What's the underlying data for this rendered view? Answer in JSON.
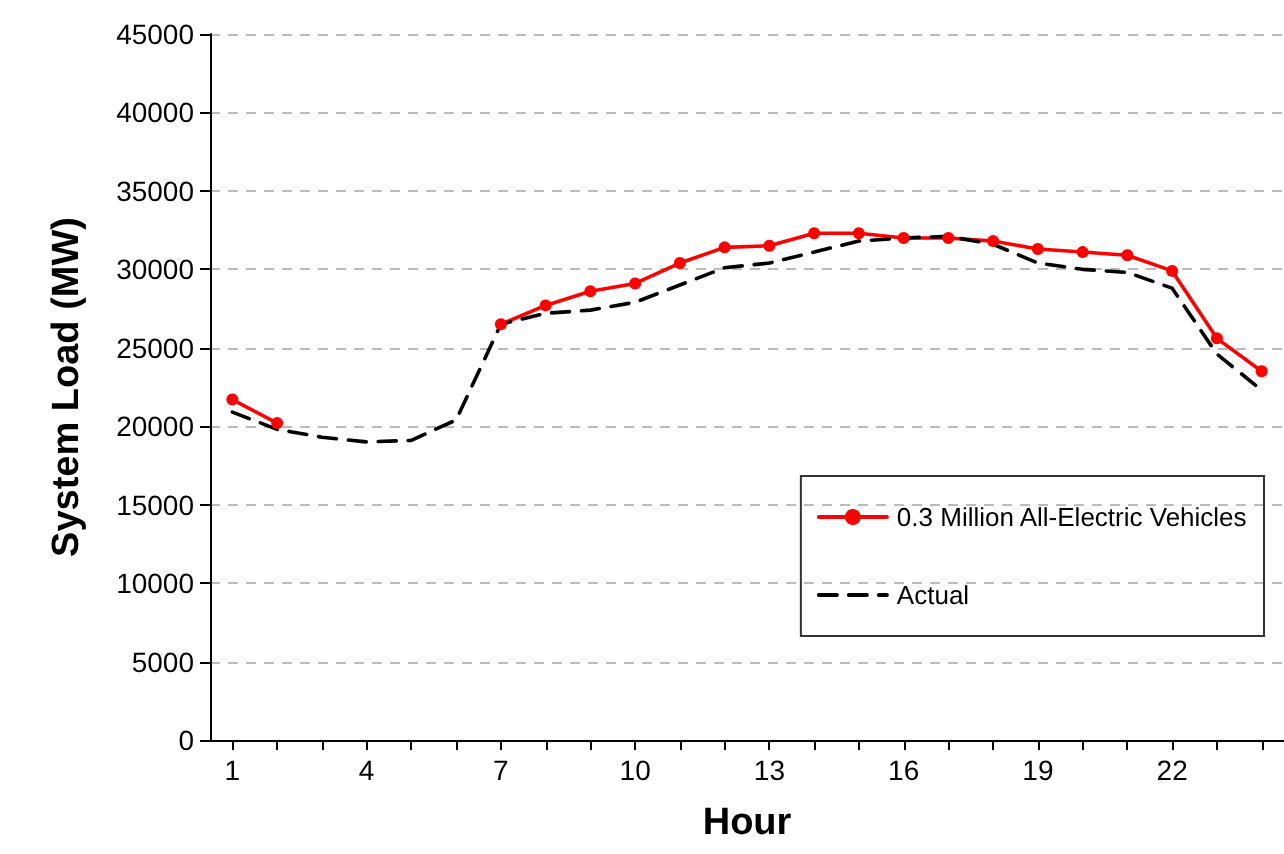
{
  "chart_data": {
    "type": "line",
    "xlabel": "Hour",
    "ylabel": "System Load (MW)",
    "categories": [
      "1",
      null,
      null,
      "4",
      null,
      null,
      "7",
      null,
      null,
      "10",
      null,
      null,
      "13",
      null,
      null,
      "16",
      null,
      null,
      "19",
      null,
      null,
      "22",
      null,
      null
    ],
    "series": [
      {
        "name": "0.3 Million All-Electric Vehicles",
        "color": "#ff0000",
        "marker": "circle",
        "line_style": "solid",
        "values": [
          21700,
          20200,
          null,
          null,
          null,
          null,
          26500,
          27700,
          28600,
          29100,
          30400,
          31400,
          31500,
          32300,
          32300,
          32000,
          32000,
          31800,
          31300,
          31100,
          30900,
          29900,
          25600,
          23500
        ]
      },
      {
        "name": "Actual",
        "color": "#000000",
        "marker": "none",
        "line_style": "dashed",
        "values": [
          20900,
          19800,
          19300,
          19000,
          19100,
          20400,
          26500,
          27200,
          27400,
          27900,
          29000,
          30100,
          30400,
          31100,
          31800,
          32000,
          32100,
          31600,
          30400,
          30000,
          29800,
          28800,
          24600,
          22300
        ]
      }
    ],
    "ylim": [
      0,
      45000
    ],
    "yticks": [
      0,
      5000,
      10000,
      15000,
      20000,
      25000,
      30000,
      35000,
      40000,
      45000
    ],
    "grid": "y",
    "legend": "right"
  }
}
